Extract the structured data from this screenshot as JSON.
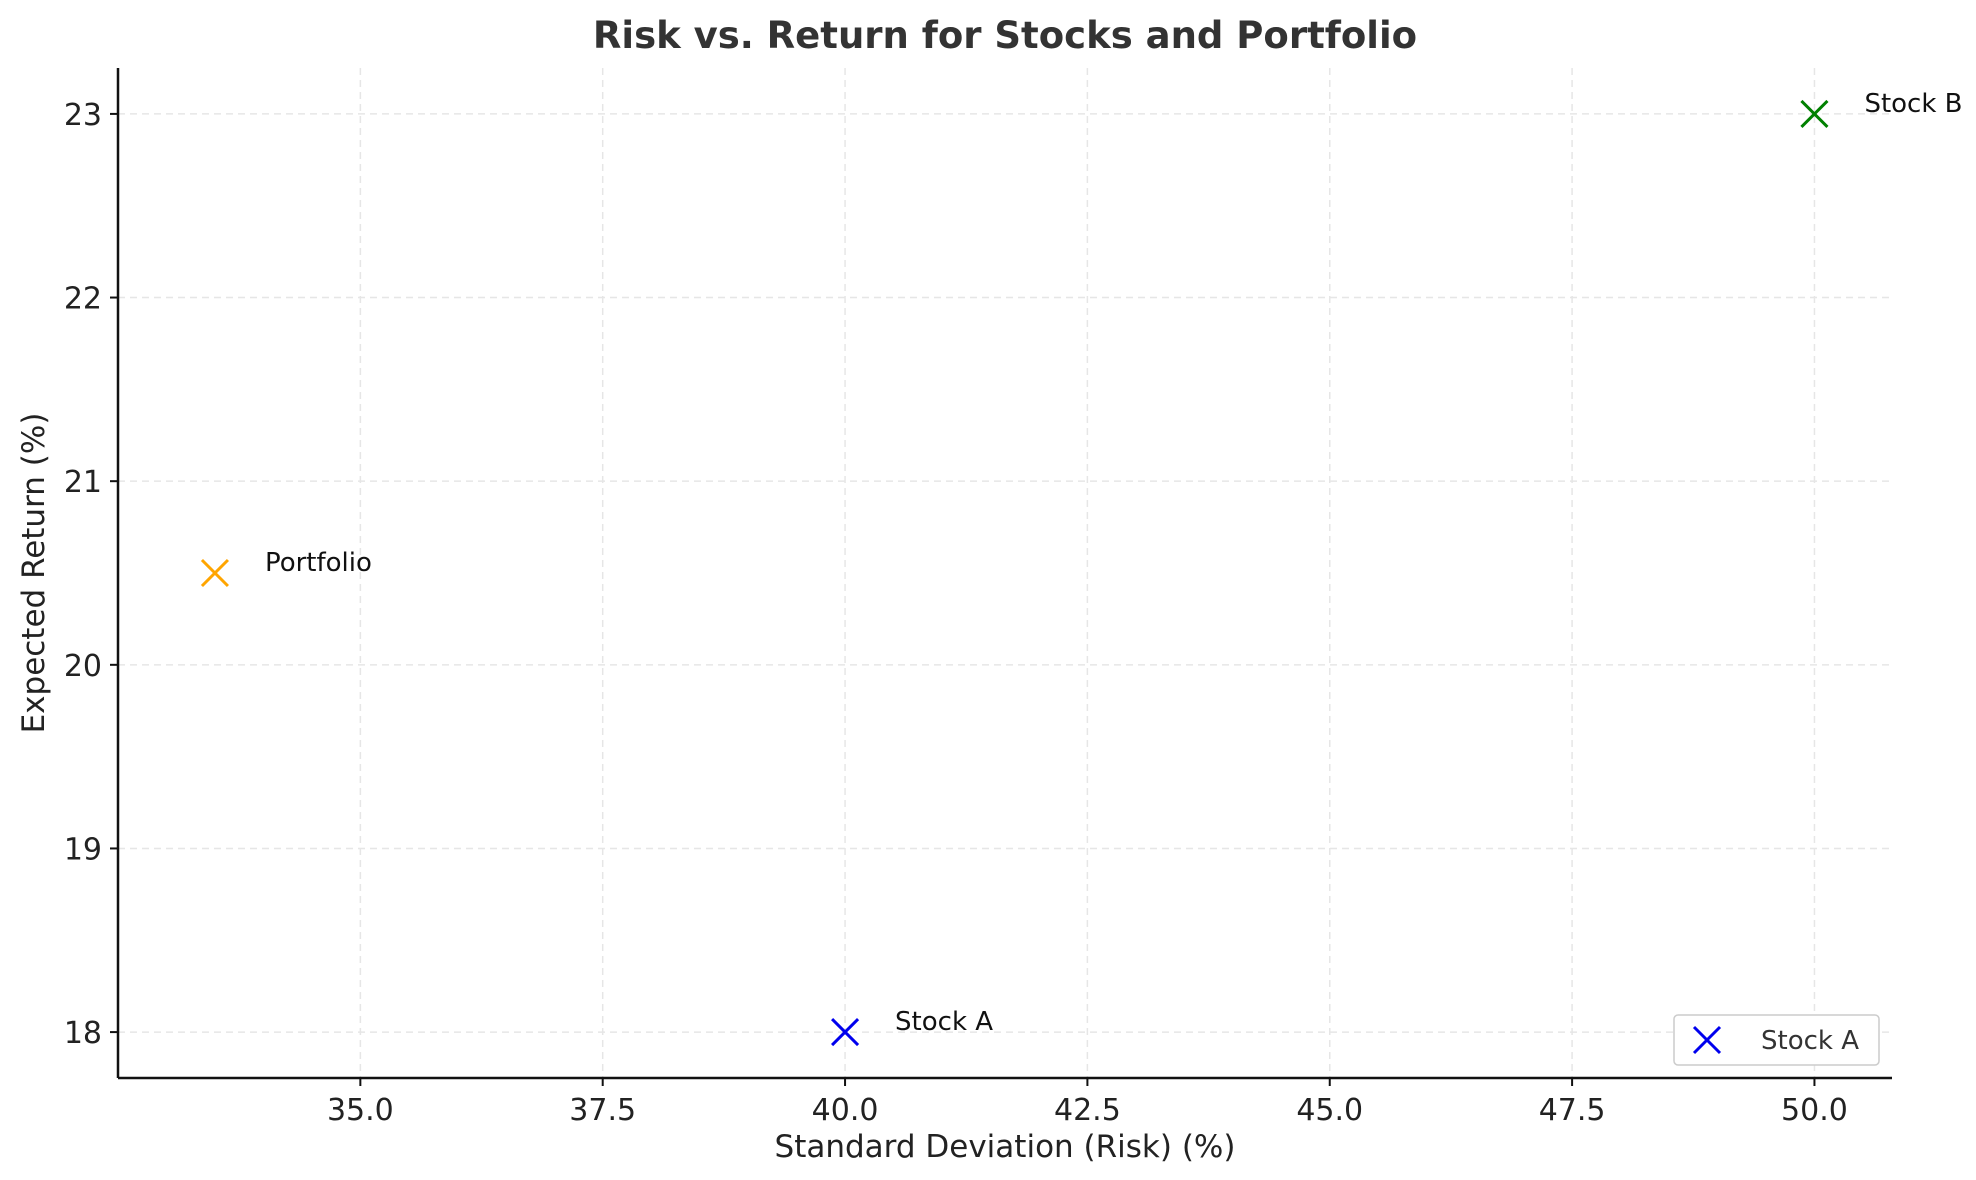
{
  "chart_data": {
    "type": "scatter",
    "title": "Risk vs. Return for Stocks and Portfolio",
    "xlabel": "Standard Deviation (Risk) (%)",
    "ylabel": "Expected Return (%)",
    "xlim": [
      32.5,
      50.8
    ],
    "ylim": [
      17.75,
      23.25
    ],
    "xticks": [
      35.0,
      37.5,
      40.0,
      42.5,
      45.0,
      47.5,
      50.0
    ],
    "xtick_labels": [
      "35.0",
      "37.5",
      "40.0",
      "42.5",
      "45.0",
      "47.5",
      "50.0"
    ],
    "yticks": [
      18,
      19,
      20,
      21,
      22,
      23
    ],
    "ytick_labels": [
      "18",
      "19",
      "20",
      "21",
      "22",
      "23"
    ],
    "grid": true,
    "legend_position": "lower-right",
    "legend": [
      {
        "label": "Stock A",
        "color": "#0000ee",
        "marker": "x"
      }
    ],
    "series": [
      {
        "label": "Stock A",
        "x": 40.0,
        "y": 18.0,
        "color": "#0000ee",
        "marker": "x"
      },
      {
        "label": "Stock B",
        "x": 50.0,
        "y": 23.0,
        "color": "#008000",
        "marker": "x"
      },
      {
        "label": "Portfolio",
        "x": 33.5,
        "y": 20.5,
        "color": "#ffa500",
        "marker": "x"
      }
    ]
  }
}
